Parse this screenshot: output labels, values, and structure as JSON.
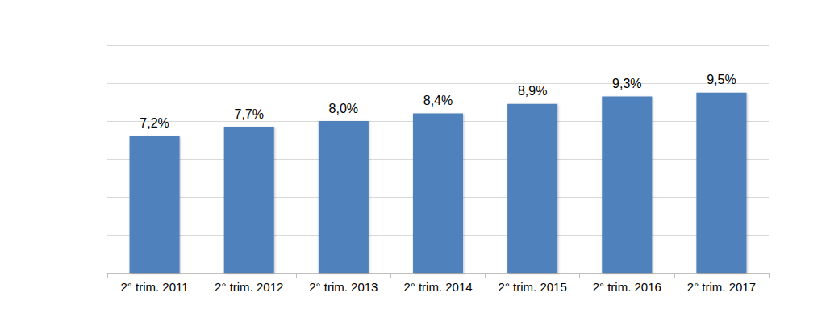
{
  "chart_data": {
    "type": "bar",
    "categories": [
      "2° trim. 2011",
      "2° trim. 2012",
      "2° trim. 2013",
      "2° trim. 2014",
      "2° trim. 2015",
      "2° trim. 2016",
      "2° trim. 2017"
    ],
    "values": [
      7.2,
      7.7,
      8.0,
      8.4,
      8.9,
      9.3,
      9.5
    ],
    "value_labels": [
      "7,2%",
      "7,7%",
      "8,0%",
      "8,4%",
      "8,9%",
      "9,3%",
      "9,5%"
    ],
    "color": "#4f81bd",
    "ylim": [
      0,
      12
    ],
    "yticks": [
      0,
      2,
      4,
      6,
      8,
      10,
      12
    ],
    "grid": true,
    "data_labels": true,
    "tick_labels": "x"
  }
}
